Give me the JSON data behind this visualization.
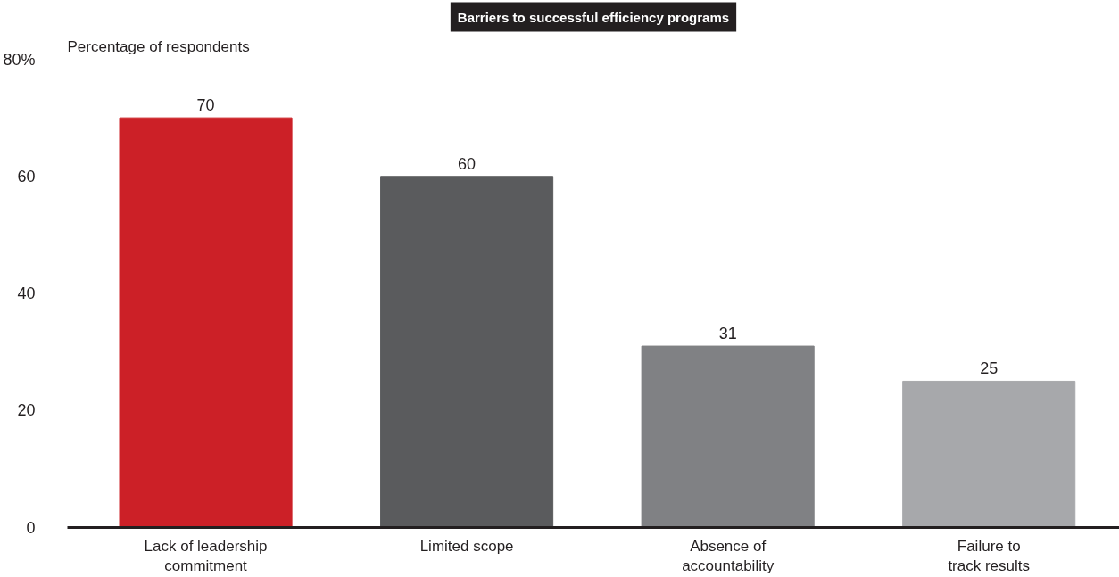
{
  "chart_data": {
    "type": "bar",
    "title": "Barriers to successful efficiency programs",
    "ylabel": "Percentage of respondents",
    "categories": [
      "Lack of leadership commitment",
      "Limited scope",
      "Absence of accountability",
      "Failure to track results"
    ],
    "values": [
      70,
      60,
      31,
      25
    ],
    "colors": [
      "#cc2027",
      "#5a5b5d",
      "#808184",
      "#a7a8ab"
    ],
    "ylim": [
      0,
      80
    ],
    "yticks": [
      0,
      20,
      40,
      60,
      {
        "value": 80,
        "label": "80%"
      }
    ],
    "data_labels": true,
    "grid": false
  }
}
